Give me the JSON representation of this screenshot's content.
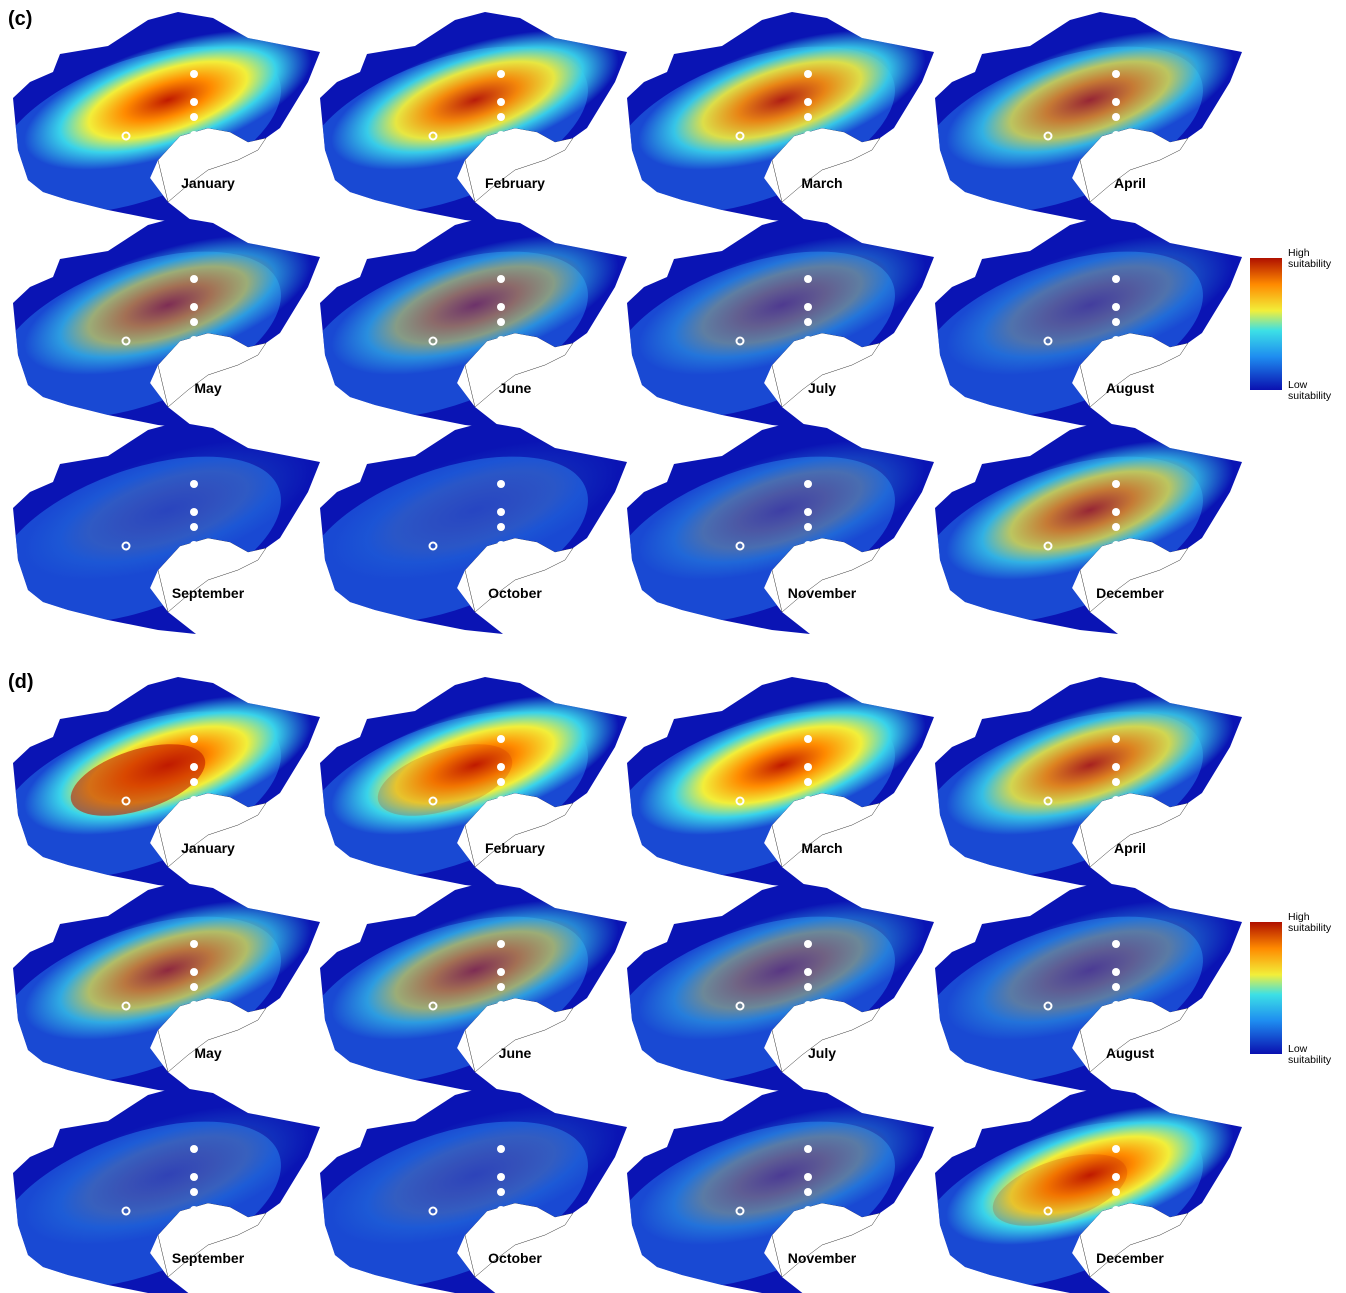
{
  "panels": [
    {
      "label": "(c)",
      "months": [
        "January",
        "February",
        "March",
        "April",
        "May",
        "June",
        "July",
        "August",
        "September",
        "October",
        "November",
        "December"
      ],
      "legend": {
        "high": [
          "High",
          "suitability"
        ],
        "low": [
          "Low",
          "suitability"
        ]
      }
    },
    {
      "label": "(d)",
      "months": [
        "January",
        "February",
        "March",
        "April",
        "May",
        "June",
        "July",
        "August",
        "September",
        "October",
        "November",
        "December"
      ],
      "legend": {
        "high": [
          "High",
          "suitability"
        ],
        "low": [
          "Low",
          "suitability"
        ]
      }
    }
  ]
}
